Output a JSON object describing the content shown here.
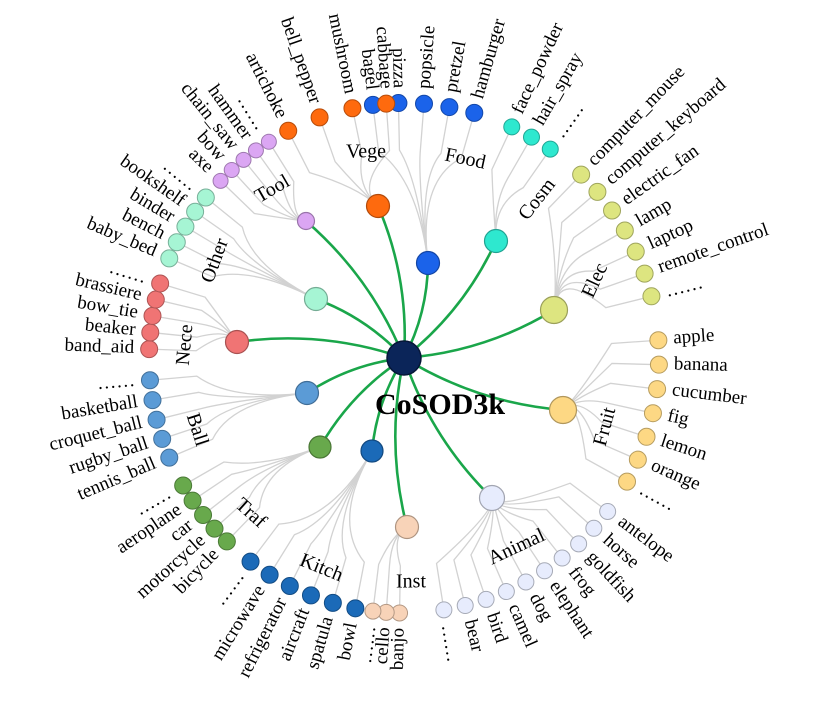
{
  "root": {
    "label": "CoSOD3k",
    "color": "#0b2559"
  },
  "link_color": "#1aa64a",
  "categories": [
    {
      "label": "Food",
      "color": "#1b63ea",
      "items": [
        "bagel",
        "pizza",
        "popsicle",
        "pretzel",
        "hamburger"
      ]
    },
    {
      "label": "Cosm",
      "color": "#2ee8cf",
      "items": [
        "face_powder",
        "hair_spray",
        "……"
      ]
    },
    {
      "label": "Elec",
      "color": "#dde580",
      "items": [
        "computer_mouse",
        "computer_keyboard",
        "electric_fan",
        "lamp",
        "laptop",
        "remote_control",
        "……"
      ]
    },
    {
      "label": "Fruit",
      "color": "#fdd884",
      "items": [
        "apple",
        "banana",
        "cucumber",
        "fig",
        "lemon",
        "orange",
        "……"
      ]
    },
    {
      "label": "Animal",
      "color": "#e7ecfd",
      "items": [
        "antelope",
        "horse",
        "goldfish",
        "frog",
        "elephant",
        "dog",
        "camel",
        "bird",
        "bear",
        "……"
      ]
    },
    {
      "label": "Inst",
      "color": "#f8d3b8",
      "items": [
        "banjo",
        "cello",
        "……"
      ]
    },
    {
      "label": "Kitch",
      "color": "#1b6ab8",
      "items": [
        "bowl",
        "spatula",
        "aircraft",
        "refrigerator",
        "microwave",
        "……"
      ]
    },
    {
      "label": "Traf",
      "color": "#68a94c",
      "items": [
        "bicycle",
        "motorcycle",
        "car",
        "aeroplane",
        "……"
      ]
    },
    {
      "label": "Ball",
      "color": "#5b9bd6",
      "items": [
        "tennis_ball",
        "rugby_ball",
        "croquet_ball",
        "basketball",
        "……"
      ]
    },
    {
      "label": "Nece",
      "color": "#f07474",
      "items": [
        "band_aid",
        "beaker",
        "bow_tie",
        "brassiere",
        "……"
      ]
    },
    {
      "label": "Other",
      "color": "#a6f5d4",
      "items": [
        "baby_bed",
        "bench",
        "binder",
        "bookshelf",
        "……"
      ]
    },
    {
      "label": "Tool",
      "color": "#dba6f3",
      "items": [
        "axe",
        "bow",
        "chain_saw",
        "hammer",
        "……"
      ]
    },
    {
      "label": "Vege",
      "color": "#fe6a0e",
      "items": [
        "artichoke",
        "bell_pepper",
        "mushroom",
        "cabbage"
      ]
    }
  ]
}
